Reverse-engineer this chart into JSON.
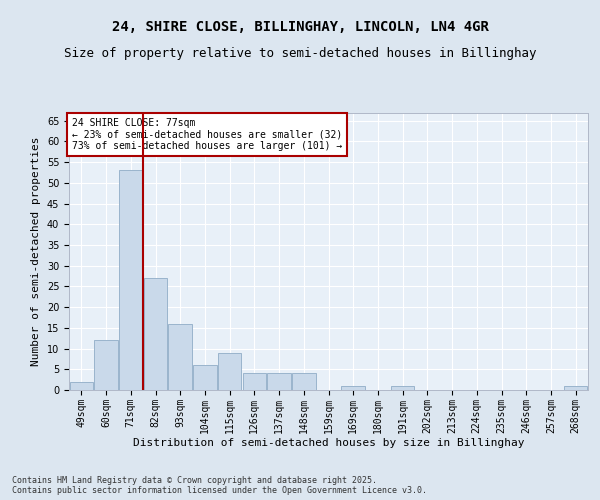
{
  "title1": "24, SHIRE CLOSE, BILLINGHAY, LINCOLN, LN4 4GR",
  "title2": "Size of property relative to semi-detached houses in Billinghay",
  "xlabel": "Distribution of semi-detached houses by size in Billinghay",
  "ylabel": "Number of semi-detached properties",
  "categories": [
    "49sqm",
    "60sqm",
    "71sqm",
    "82sqm",
    "93sqm",
    "104sqm",
    "115sqm",
    "126sqm",
    "137sqm",
    "148sqm",
    "159sqm",
    "169sqm",
    "180sqm",
    "191sqm",
    "202sqm",
    "213sqm",
    "224sqm",
    "235sqm",
    "246sqm",
    "257sqm",
    "268sqm"
  ],
  "values": [
    2,
    12,
    53,
    27,
    16,
    6,
    9,
    4,
    4,
    4,
    0,
    1,
    0,
    1,
    0,
    0,
    0,
    0,
    0,
    0,
    1
  ],
  "bar_color": "#c9d9ea",
  "bar_edge_color": "#9ab4cc",
  "ylim": [
    0,
    67
  ],
  "yticks": [
    0,
    5,
    10,
    15,
    20,
    25,
    30,
    35,
    40,
    45,
    50,
    55,
    60,
    65
  ],
  "annotation_text": "24 SHIRE CLOSE: 77sqm\n← 23% of semi-detached houses are smaller (32)\n73% of semi-detached houses are larger (101) →",
  "annotation_box_color": "#ffffff",
  "annotation_box_edge": "#aa0000",
  "red_line_color": "#aa0000",
  "footnote": "Contains HM Land Registry data © Crown copyright and database right 2025.\nContains public sector information licensed under the Open Government Licence v3.0.",
  "bg_color": "#dce6f0",
  "plot_bg_color": "#e8f0f8",
  "grid_color": "#ffffff",
  "title_fontsize": 10,
  "subtitle_fontsize": 9,
  "tick_fontsize": 7,
  "label_fontsize": 8,
  "annot_fontsize": 7,
  "footnote_fontsize": 6
}
